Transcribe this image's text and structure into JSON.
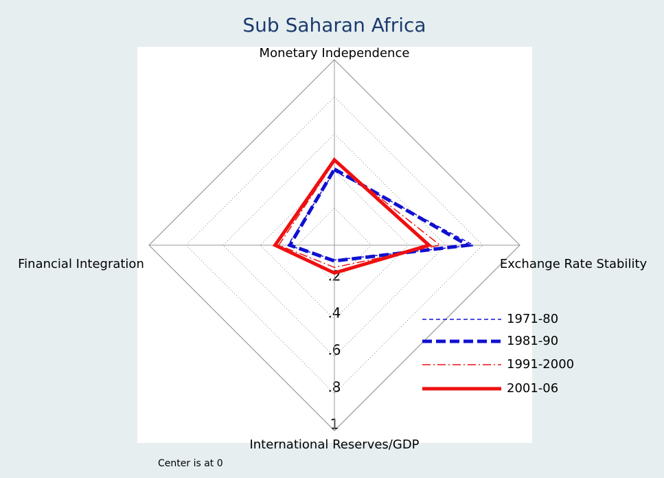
{
  "chart_data": {
    "type": "radar",
    "title": "Sub Saharan Africa",
    "axes": [
      "Monetary Independence",
      "Exchange Rate Stability",
      "International Reserves/GDP",
      "Financial Integration"
    ],
    "rlim": [
      0,
      1
    ],
    "rticks": [
      {
        "value": 0.2,
        "label": ".2"
      },
      {
        "value": 0.4,
        "label": ".4"
      },
      {
        "value": 0.6,
        "label": ".6"
      },
      {
        "value": 0.8,
        "label": ".8"
      },
      1
    ],
    "series": [
      {
        "name": "1971-80",
        "color": "#1010d0",
        "line_style": "dashed",
        "values": [
          0.4,
          0.75,
          0.08,
          0.25
        ]
      },
      {
        "name": "1981-90",
        "color": "#1010d0",
        "line_style": "dashed-thick",
        "values": [
          0.41,
          0.72,
          0.085,
          0.24
        ]
      },
      {
        "name": "1991-2000",
        "color": "#ee1010",
        "line_style": "dash-dot",
        "values": [
          0.45,
          0.57,
          0.12,
          0.3
        ]
      },
      {
        "name": "2001-06",
        "color": "#ee1010",
        "line_style": "solid-thick",
        "values": [
          0.46,
          0.51,
          0.15,
          0.32
        ]
      }
    ],
    "note": "Center is at 0"
  }
}
